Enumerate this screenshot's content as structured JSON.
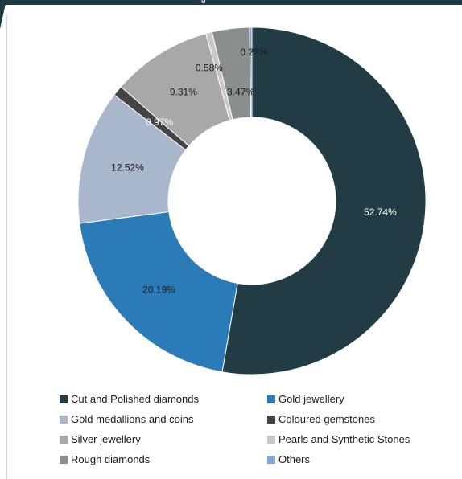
{
  "header": {
    "title_fragment": "g"
  },
  "chart_data": {
    "type": "pie",
    "donut": true,
    "series": [
      {
        "name": "Cut and Polished diamonds",
        "value": 52.74,
        "label": "52.74%",
        "color": "#223c45",
        "label_color": "#ffffff"
      },
      {
        "name": "Gold jewellery",
        "value": 20.19,
        "label": "20.19%",
        "color": "#2b7bb9",
        "label_color": "#1a1a1a"
      },
      {
        "name": "Gold medallions and coins",
        "value": 12.52,
        "label": "12.52%",
        "color": "#a9b7cc",
        "label_color": "#1a1a1a"
      },
      {
        "name": "Coloured gemstones",
        "value": 0.97,
        "label": "0.97%",
        "color": "#444444",
        "label_color": "#ffffff"
      },
      {
        "name": "Silver jewellery",
        "value": 9.31,
        "label": "9.31%",
        "color": "#a8a8a8",
        "label_color": "#1a1a1a"
      },
      {
        "name": "Pearls and Synthetic Stones",
        "value": 0.58,
        "label": "0.58%",
        "color": "#c8c8c8",
        "label_color": "#1a1a1a"
      },
      {
        "name": "Rough diamonds",
        "value": 3.47,
        "label": "3.47%",
        "color": "#8a8f8e",
        "label_color": "#1a1a1a"
      },
      {
        "name": "Others",
        "value": 0.22,
        "label": "0.22%",
        "color": "#7fa6d6",
        "label_color": "#1a1a1a"
      }
    ],
    "legend_position": "bottom",
    "legend": [
      "Cut and Polished diamonds",
      "Gold jewellery",
      "Gold medallions and coins",
      "Coloured gemstones",
      "Silver jewellery",
      "Pearls and Synthetic Stones",
      "Rough diamonds",
      "Others"
    ]
  }
}
